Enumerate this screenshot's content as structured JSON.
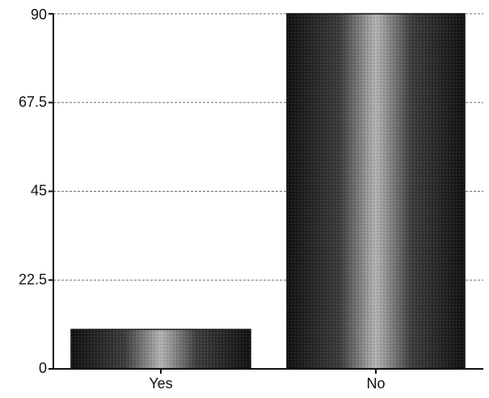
{
  "chart_data": {
    "type": "bar",
    "title": "",
    "xlabel": "",
    "ylabel": "",
    "categories": [
      "Yes",
      "No"
    ],
    "values": [
      10,
      90
    ],
    "ylim": [
      0,
      90
    ],
    "yticks": [
      0,
      22.5,
      45,
      67.5,
      90
    ],
    "ytick_labels": [
      "0",
      "22.5",
      "45",
      "67.5",
      "90"
    ],
    "grid": true,
    "legend": "none",
    "colors": {
      "bar_dark": "#111111",
      "bar_mid": "#3c3c3c",
      "bar_light": "#b4b4b4",
      "axis": "#111111",
      "grid": "#6f6f6f",
      "background": "#ffffff"
    }
  }
}
